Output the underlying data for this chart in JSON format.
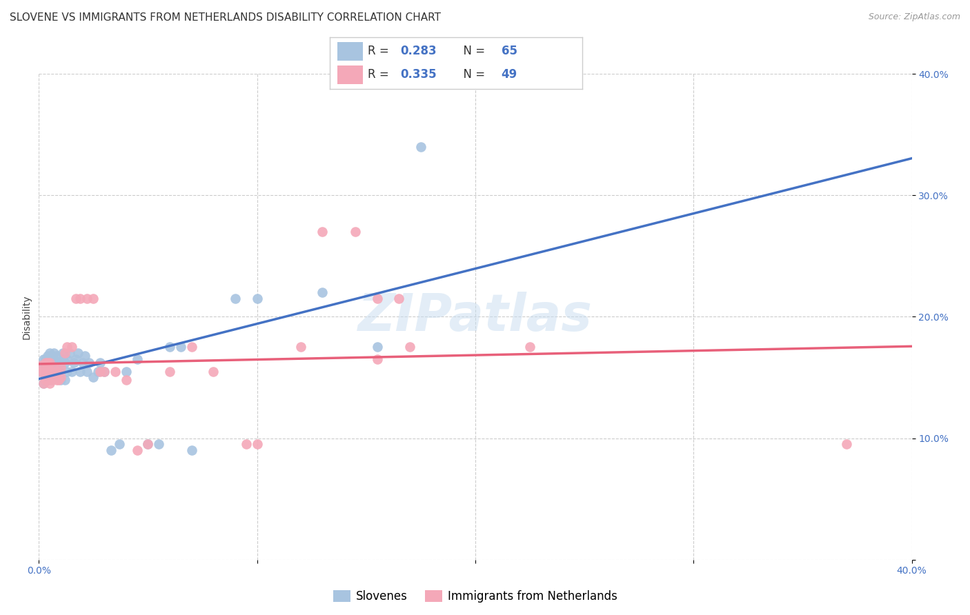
{
  "title": "SLOVENE VS IMMIGRANTS FROM NETHERLANDS DISABILITY CORRELATION CHART",
  "source": "Source: ZipAtlas.com",
  "ylabel": "Disability",
  "xlim": [
    0.0,
    0.4
  ],
  "ylim": [
    0.0,
    0.4
  ],
  "grid_color": "#cccccc",
  "background_color": "#ffffff",
  "watermark": "ZIPatlas",
  "slovene_color": "#a8c4e0",
  "immigrant_color": "#f4a8b8",
  "slovene_line_color": "#4472c4",
  "immigrant_line_color": "#e8607a",
  "R_slovene": 0.283,
  "N_slovene": 65,
  "R_immigrant": 0.335,
  "N_immigrant": 49,
  "slovene_x": [
    0.001,
    0.001,
    0.002,
    0.002,
    0.002,
    0.003,
    0.003,
    0.003,
    0.003,
    0.004,
    0.004,
    0.004,
    0.004,
    0.005,
    0.005,
    0.005,
    0.005,
    0.006,
    0.006,
    0.006,
    0.007,
    0.007,
    0.007,
    0.008,
    0.008,
    0.008,
    0.009,
    0.009,
    0.01,
    0.01,
    0.01,
    0.011,
    0.011,
    0.012,
    0.012,
    0.013,
    0.013,
    0.014,
    0.015,
    0.016,
    0.017,
    0.018,
    0.019,
    0.02,
    0.021,
    0.022,
    0.023,
    0.025,
    0.027,
    0.028,
    0.03,
    0.033,
    0.037,
    0.04,
    0.045,
    0.05,
    0.055,
    0.06,
    0.065,
    0.07,
    0.09,
    0.1,
    0.13,
    0.155,
    0.175
  ],
  "slovene_y": [
    0.155,
    0.16,
    0.145,
    0.155,
    0.165,
    0.15,
    0.155,
    0.16,
    0.165,
    0.148,
    0.155,
    0.162,
    0.168,
    0.15,
    0.155,
    0.162,
    0.17,
    0.148,
    0.155,
    0.162,
    0.158,
    0.165,
    0.17,
    0.155,
    0.162,
    0.168,
    0.155,
    0.162,
    0.148,
    0.155,
    0.162,
    0.165,
    0.17,
    0.148,
    0.162,
    0.155,
    0.165,
    0.17,
    0.155,
    0.162,
    0.165,
    0.17,
    0.155,
    0.162,
    0.168,
    0.155,
    0.162,
    0.15,
    0.155,
    0.162,
    0.155,
    0.09,
    0.095,
    0.155,
    0.165,
    0.095,
    0.095,
    0.175,
    0.175,
    0.09,
    0.215,
    0.215,
    0.22,
    0.175,
    0.34
  ],
  "immigrant_x": [
    0.001,
    0.001,
    0.002,
    0.002,
    0.003,
    0.003,
    0.003,
    0.004,
    0.004,
    0.004,
    0.005,
    0.005,
    0.005,
    0.006,
    0.006,
    0.007,
    0.007,
    0.008,
    0.008,
    0.009,
    0.01,
    0.01,
    0.012,
    0.013,
    0.015,
    0.017,
    0.019,
    0.022,
    0.025,
    0.028,
    0.03,
    0.035,
    0.04,
    0.045,
    0.05,
    0.06,
    0.07,
    0.08,
    0.095,
    0.1,
    0.12,
    0.13,
    0.145,
    0.155,
    0.155,
    0.165,
    0.17,
    0.225,
    0.37
  ],
  "immigrant_y": [
    0.155,
    0.16,
    0.145,
    0.155,
    0.148,
    0.155,
    0.162,
    0.148,
    0.155,
    0.162,
    0.145,
    0.155,
    0.162,
    0.148,
    0.155,
    0.15,
    0.158,
    0.148,
    0.155,
    0.148,
    0.15,
    0.158,
    0.17,
    0.175,
    0.175,
    0.215,
    0.215,
    0.215,
    0.215,
    0.155,
    0.155,
    0.155,
    0.148,
    0.09,
    0.095,
    0.155,
    0.175,
    0.155,
    0.095,
    0.095,
    0.175,
    0.27,
    0.27,
    0.165,
    0.215,
    0.215,
    0.175,
    0.175,
    0.095
  ],
  "legend_slovene_label": "Slovenes",
  "legend_immigrant_label": "Immigrants from Netherlands",
  "title_fontsize": 11,
  "source_fontsize": 9,
  "axis_label_fontsize": 10,
  "tick_fontsize": 10,
  "legend_fontsize": 12
}
